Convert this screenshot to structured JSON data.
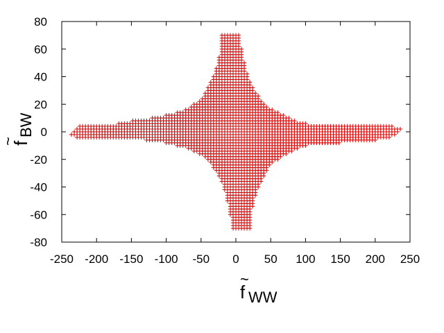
{
  "chart_data": {
    "type": "scatter",
    "marker": "+",
    "marker_color": "#d40000",
    "xlabel": {
      "main": "f",
      "accent": "~",
      "sub": "WW"
    },
    "ylabel": {
      "main": "f",
      "accent": "~",
      "sub": "BW"
    },
    "xlim": [
      -250,
      250
    ],
    "ylim": [
      -80,
      80
    ],
    "xticks": [
      -250,
      -200,
      -150,
      -100,
      -50,
      0,
      50,
      100,
      150,
      200,
      250
    ],
    "yticks": [
      -80,
      -60,
      -40,
      -20,
      0,
      20,
      40,
      60,
      80
    ],
    "grid": false,
    "legend": "none",
    "region": {
      "description_free": true,
      "x_step": 4,
      "y_step": 2,
      "upper_boundary": [
        [
          -236,
          -1
        ],
        [
          -230,
          3
        ],
        [
          -222,
          5
        ],
        [
          -200,
          5
        ],
        [
          -180,
          5
        ],
        [
          -150,
          8
        ],
        [
          -130,
          8
        ],
        [
          -115,
          11
        ],
        [
          -100,
          12
        ],
        [
          -85,
          14
        ],
        [
          -70,
          17
        ],
        [
          -55,
          22
        ],
        [
          -45,
          27
        ],
        [
          -38,
          34
        ],
        [
          -30,
          42
        ],
        [
          -25,
          52
        ],
        [
          -22,
          62
        ],
        [
          -20,
          70
        ],
        [
          -10,
          71
        ],
        [
          0,
          71
        ],
        [
          6,
          70
        ],
        [
          8,
          60
        ],
        [
          12,
          50
        ],
        [
          18,
          40
        ],
        [
          25,
          32
        ],
        [
          32,
          26
        ],
        [
          42,
          20
        ],
        [
          55,
          15
        ],
        [
          70,
          12
        ],
        [
          85,
          8
        ],
        [
          100,
          6
        ],
        [
          130,
          5
        ],
        [
          150,
          4
        ],
        [
          200,
          4
        ],
        [
          225,
          4
        ],
        [
          236,
          3
        ]
      ],
      "lower_boundary": [
        [
          -236,
          -3
        ],
        [
          -230,
          -4
        ],
        [
          -210,
          -4
        ],
        [
          -180,
          -4
        ],
        [
          -150,
          -4
        ],
        [
          -130,
          -6
        ],
        [
          -100,
          -8
        ],
        [
          -85,
          -10
        ],
        [
          -70,
          -12
        ],
        [
          -55,
          -15
        ],
        [
          -42,
          -20
        ],
        [
          -32,
          -26
        ],
        [
          -25,
          -32
        ],
        [
          -18,
          -40
        ],
        [
          -12,
          -50
        ],
        [
          -8,
          -60
        ],
        [
          -6,
          -70
        ],
        [
          0,
          -71
        ],
        [
          10,
          -71
        ],
        [
          20,
          -70
        ],
        [
          22,
          -62
        ],
        [
          25,
          -52
        ],
        [
          30,
          -42
        ],
        [
          38,
          -34
        ],
        [
          45,
          -27
        ],
        [
          55,
          -22
        ],
        [
          70,
          -17
        ],
        [
          85,
          -13
        ],
        [
          100,
          -10
        ],
        [
          120,
          -8
        ],
        [
          150,
          -8
        ],
        [
          180,
          -6
        ],
        [
          200,
          -6
        ],
        [
          220,
          -4
        ],
        [
          230,
          -3
        ],
        [
          236,
          1
        ]
      ]
    }
  }
}
